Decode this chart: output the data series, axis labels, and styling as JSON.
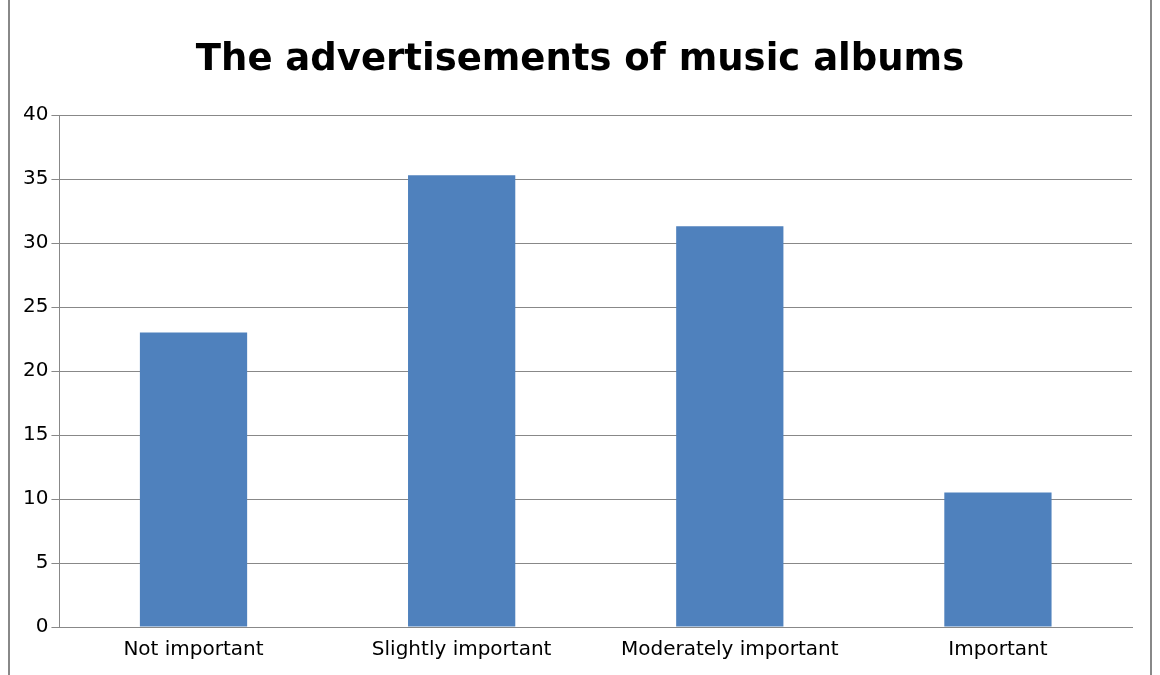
{
  "chart_data": {
    "type": "bar",
    "title": "The advertisements of music albums",
    "categories": [
      "Not important",
      "Slightly important",
      "Moderately important",
      "Important"
    ],
    "values": [
      23,
      35.3,
      31.3,
      10.5
    ],
    "color": "#4f81bd",
    "ylim": [
      0,
      40
    ],
    "yticks": [
      0,
      5,
      10,
      15,
      20,
      25,
      30,
      35,
      40
    ],
    "grid": "y",
    "legend": false
  }
}
